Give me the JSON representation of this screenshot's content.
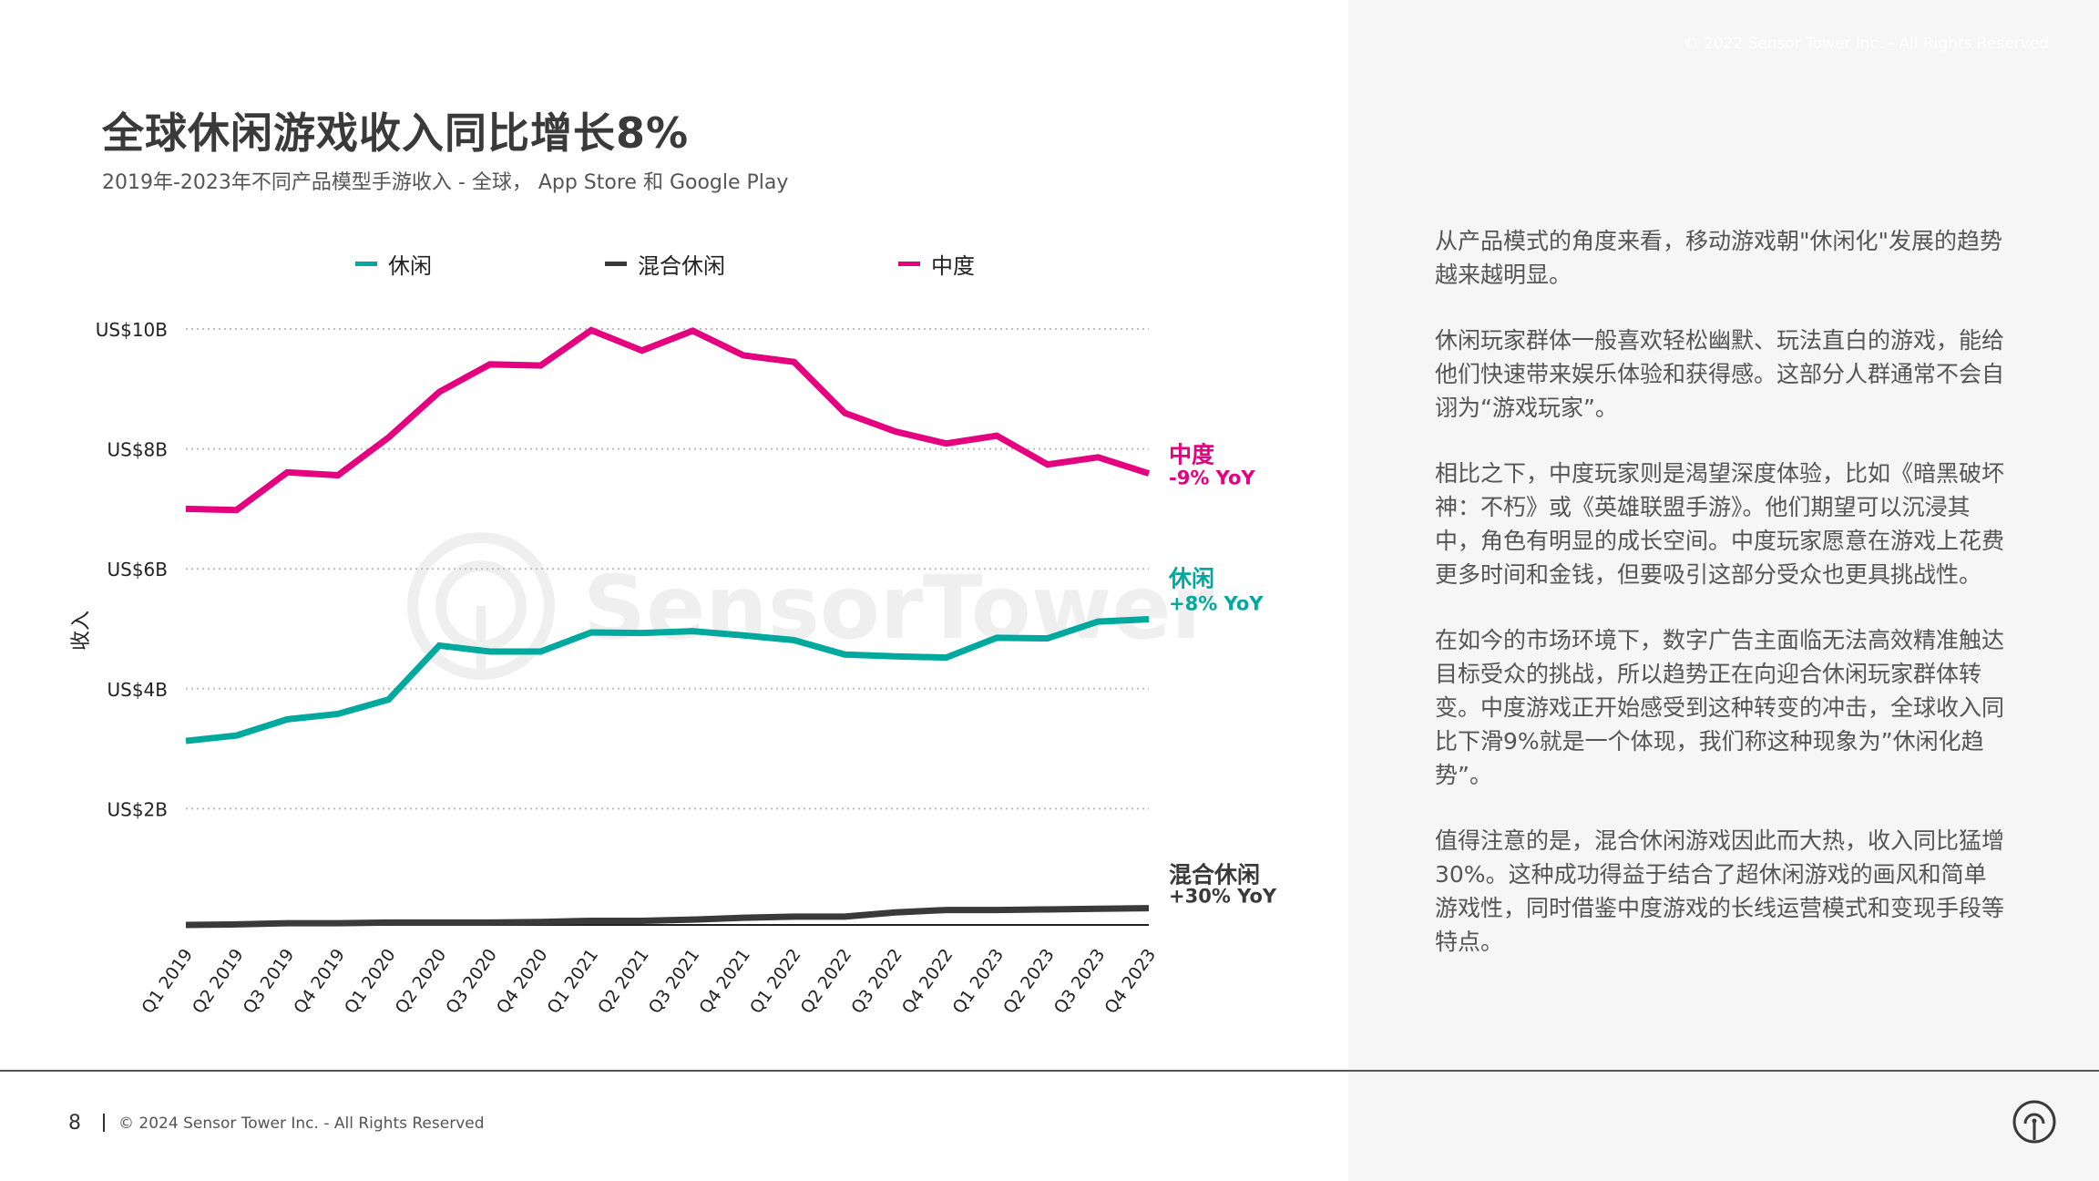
{
  "header": {
    "top_copyright": "© 2022 Sensor Tower Inc. - All Rights Reserved",
    "title": "全球休闲游戏收入同比增长8%",
    "subtitle": "2019年-2023年不同产品模型手游收入 - 全球， App Store 和 Google Play"
  },
  "watermark": "SensorTower",
  "colors": {
    "casual": "#00a99d",
    "hybrid": "#3a3a3a",
    "midcore": "#e4007f",
    "panel_bg": "#f6f6f6"
  },
  "chart_data": {
    "type": "line",
    "title": "2019年-2023年不同产品模型手游收入 - 全球， App Store 和 Google Play",
    "xlabel": "",
    "ylabel": "收入",
    "ylim": [
      0,
      10
    ],
    "yticks": [
      2,
      4,
      6,
      8,
      10
    ],
    "ytick_labels": [
      "US$2B",
      "US$4B",
      "US$6B",
      "US$8B",
      "US$10B"
    ],
    "grid": "horizontal-dotted",
    "legend": "top",
    "categories": [
      "Q1 2019",
      "Q2 2019",
      "Q3 2019",
      "Q4 2019",
      "Q1 2020",
      "Q2 2020",
      "Q3 2020",
      "Q4 2020",
      "Q1 2021",
      "Q2 2021",
      "Q3 2021",
      "Q4 2021",
      "Q1 2022",
      "Q2 2022",
      "Q3 2022",
      "Q4 2022",
      "Q1 2023",
      "Q2 2023",
      "Q3 2023",
      "Q4 2023"
    ],
    "series": [
      {
        "name": "休闲",
        "key": "casual",
        "color": "#00a99d",
        "end_label": "休闲",
        "end_sublabel": "+8% YoY",
        "values": [
          3.13,
          3.22,
          3.49,
          3.58,
          3.82,
          4.72,
          4.62,
          4.62,
          4.94,
          4.93,
          4.96,
          4.89,
          4.81,
          4.57,
          4.54,
          4.52,
          4.85,
          4.84,
          5.12,
          5.16
        ]
      },
      {
        "name": "混合休闲",
        "key": "hybrid",
        "color": "#3a3a3a",
        "end_label": "混合休闲",
        "end_sublabel": "+30% YoY",
        "values": [
          0.06,
          0.07,
          0.09,
          0.09,
          0.1,
          0.1,
          0.1,
          0.11,
          0.13,
          0.13,
          0.15,
          0.18,
          0.2,
          0.2,
          0.27,
          0.31,
          0.31,
          0.32,
          0.33,
          0.34
        ]
      },
      {
        "name": "中度",
        "key": "midcore",
        "color": "#e4007f",
        "end_label": "中度",
        "end_sublabel": "-9% YoY",
        "values": [
          7.0,
          6.98,
          7.61,
          7.56,
          8.19,
          8.95,
          9.41,
          9.39,
          9.98,
          9.64,
          9.97,
          9.56,
          9.45,
          8.6,
          8.29,
          8.09,
          8.22,
          7.74,
          7.86,
          7.59
        ]
      }
    ]
  },
  "body_paragraphs": [
    "从产品模式的角度来看，移动游戏朝\"休闲化\"发展的趋势越来越明显。",
    "休闲玩家群体一般喜欢轻松幽默、玩法直白的游戏，能给他们快速带来娱乐体验和获得感。这部分人群通常不会自诩为“游戏玩家”。",
    "相比之下，中度玩家则是渴望深度体验，比如《暗黑破坏神：不朽》或《英雄联盟手游》。他们期望可以沉浸其中，角色有明显的成长空间。中度玩家愿意在游戏上花费更多时间和金钱，但要吸引这部分受众也更具挑战性。",
    "在如今的市场环境下，数字广告主面临无法高效精准触达目标受众的挑战，所以趋势正在向迎合休闲玩家群体转变。中度游戏正开始感受到这种转变的冲击，全球收入同比下滑9%就是一个体现，我们称这种现象为”休闲化趋势”。",
    "值得注意的是，混合休闲游戏因此而大热，收入同比猛增30%。这种成功得益于结合了超休闲游戏的画风和简单游戏性，同时借鉴中度游戏的长线运营模式和变现手段等特点。"
  ],
  "footer": {
    "page_number": "8",
    "copyright": "© 2024 Sensor Tower Inc. - All Rights Reserved"
  },
  "icons": {
    "logo": "sensor-tower-logo-icon"
  }
}
